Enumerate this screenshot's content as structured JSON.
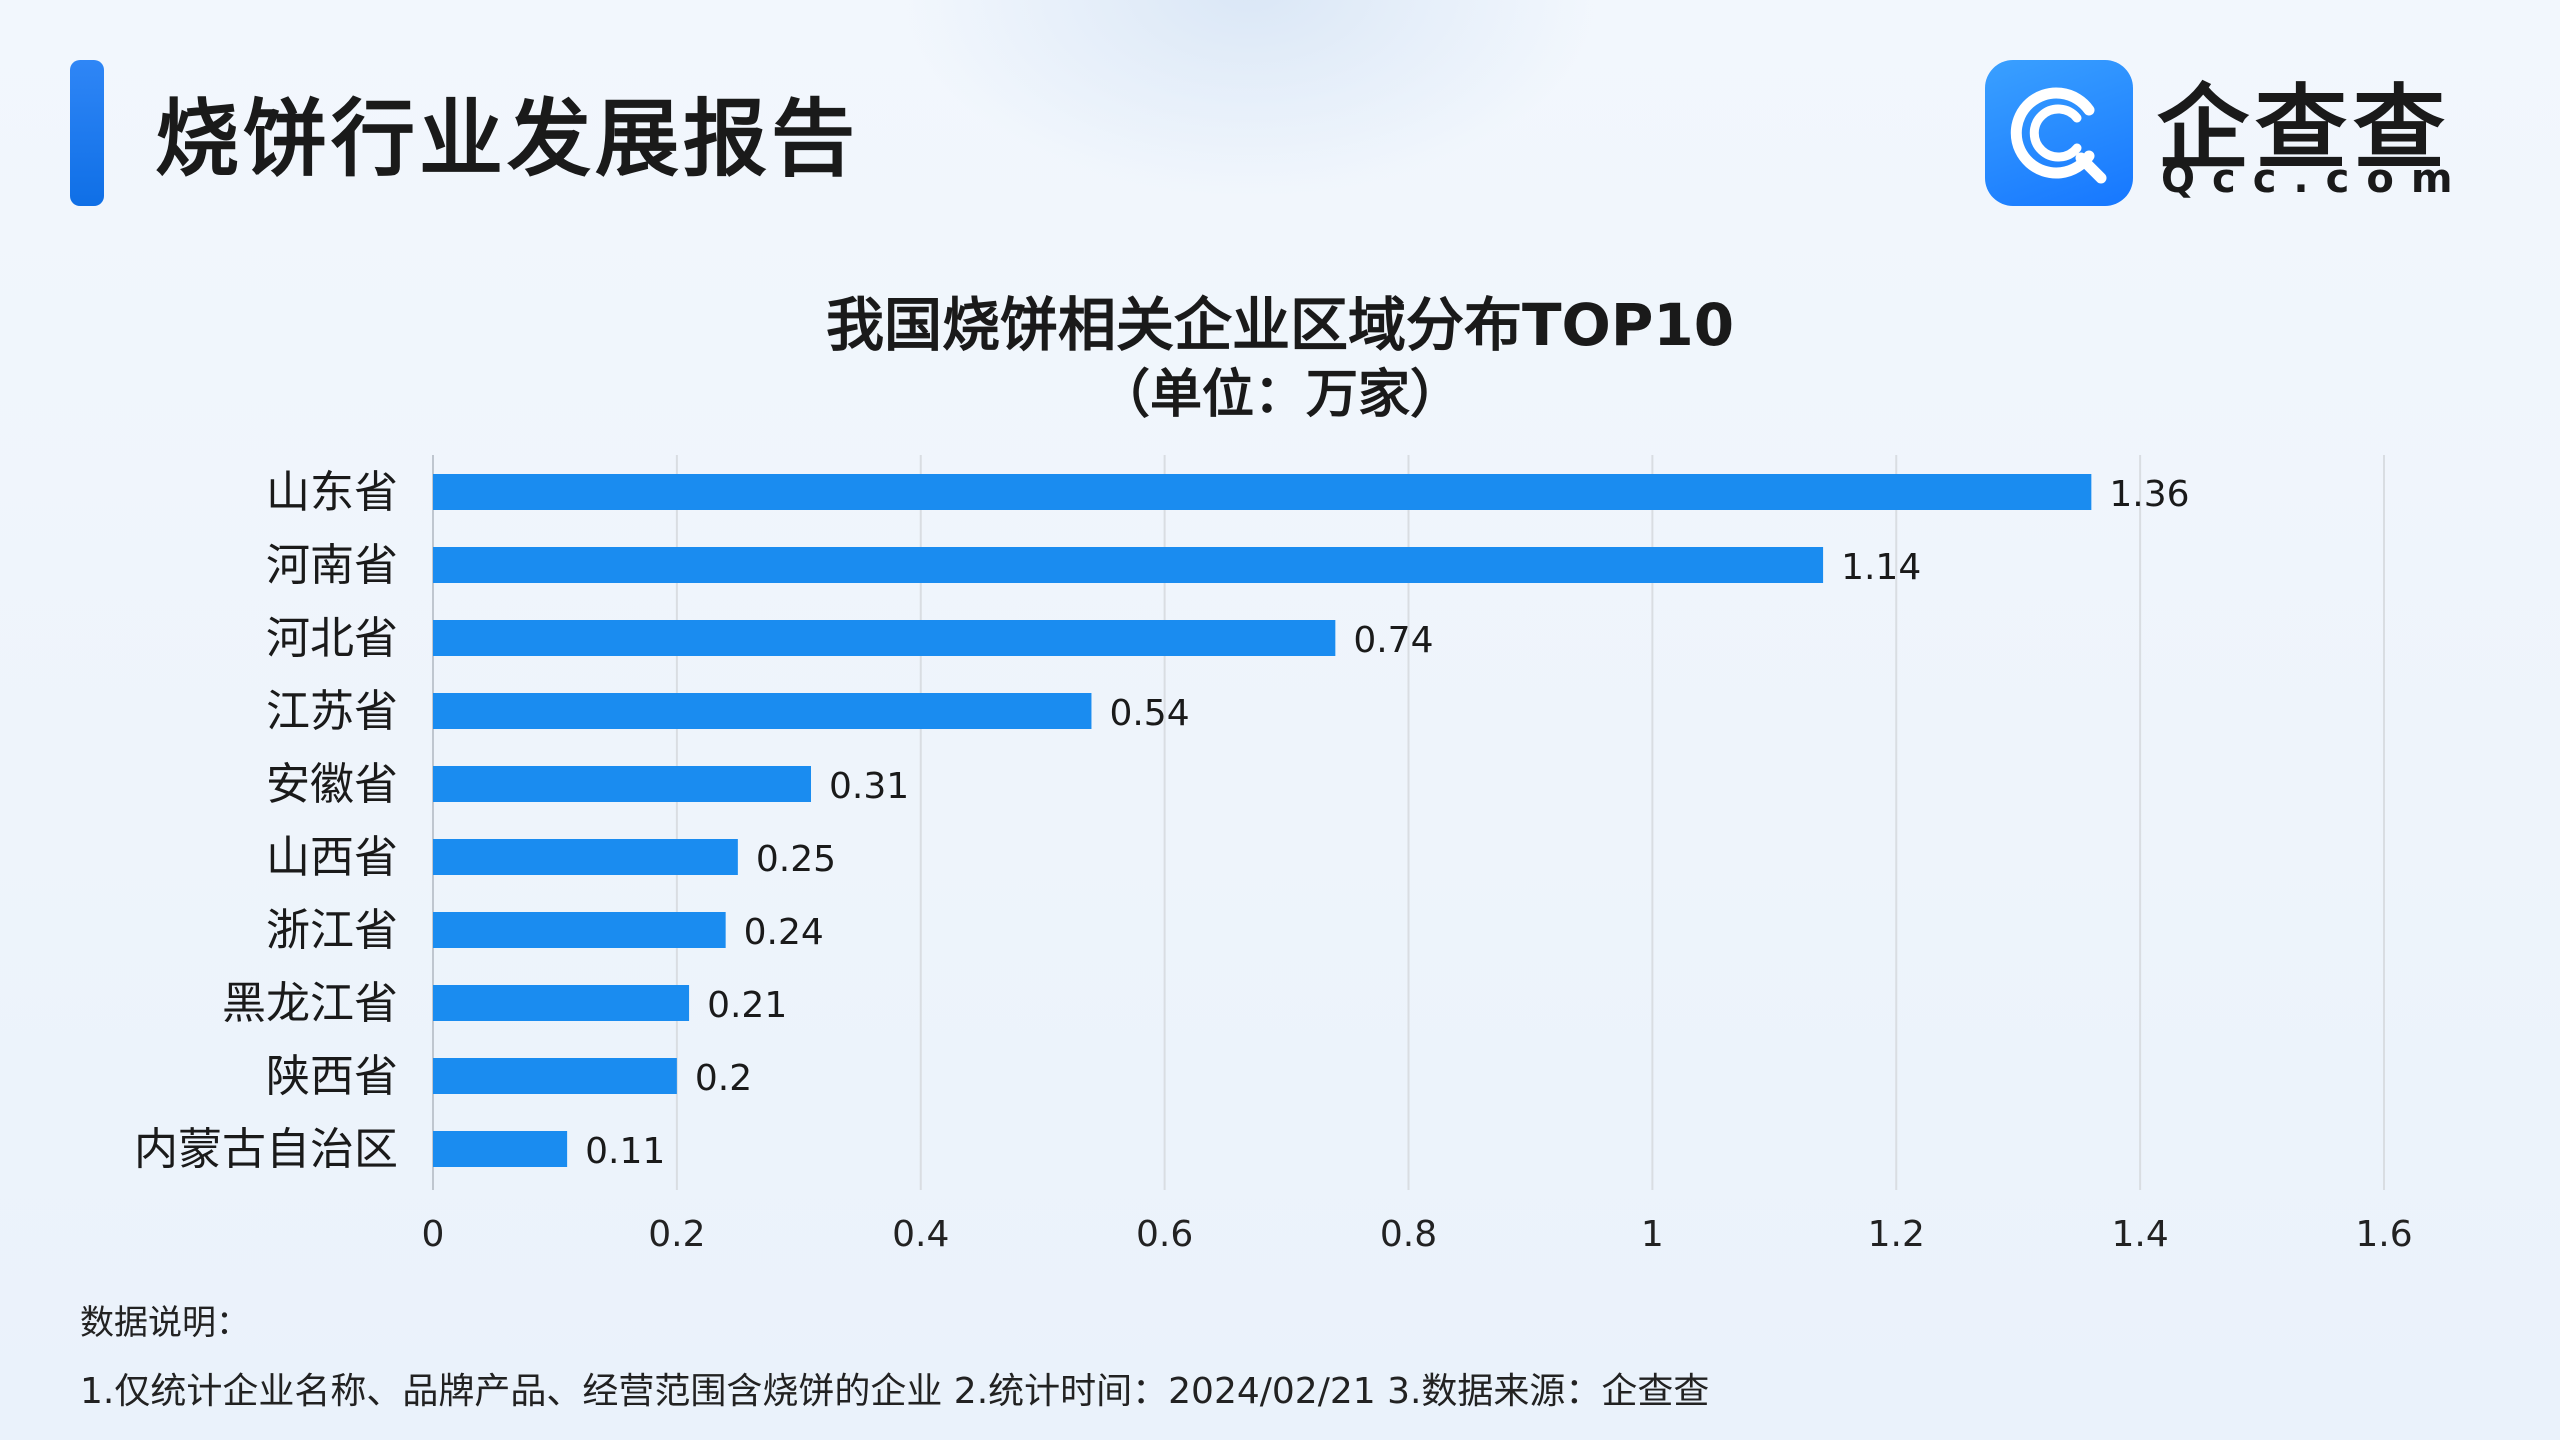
{
  "header": {
    "title": "烧饼行业发展报告",
    "logo_cn": "企查查",
    "logo_en": "Qcc.com",
    "accent_color": "#1677ff"
  },
  "chart_data": {
    "type": "bar",
    "orientation": "horizontal",
    "title": "我国烧饼相关企业区域分布TOP10",
    "subtitle": "（单位：万家）",
    "categories": [
      "山东省",
      "河南省",
      "河北省",
      "江苏省",
      "安徽省",
      "山西省",
      "浙江省",
      "黑龙江省",
      "陕西省",
      "内蒙古自治区"
    ],
    "values": [
      1.36,
      1.14,
      0.74,
      0.54,
      0.31,
      0.25,
      0.24,
      0.21,
      0.2,
      0.11
    ],
    "value_labels": [
      "1.36",
      "1.14",
      "0.74",
      "0.54",
      "0.31",
      "0.25",
      "0.24",
      "0.21",
      "0.2",
      "0.11"
    ],
    "x_ticks": [
      "0",
      "0.2",
      "0.4",
      "0.6",
      "0.8",
      "1",
      "1.2",
      "1.4",
      "1.6"
    ],
    "xlim": [
      0,
      1.6
    ],
    "grid": "vertical",
    "bar_color": "#1a8cf0"
  },
  "notes": {
    "heading": "数据说明：",
    "line": "1.仅统计企业名称、品牌产品、经营范围含烧饼的企业  2.统计时间：2024/02/21  3.数据来源：企查查"
  }
}
